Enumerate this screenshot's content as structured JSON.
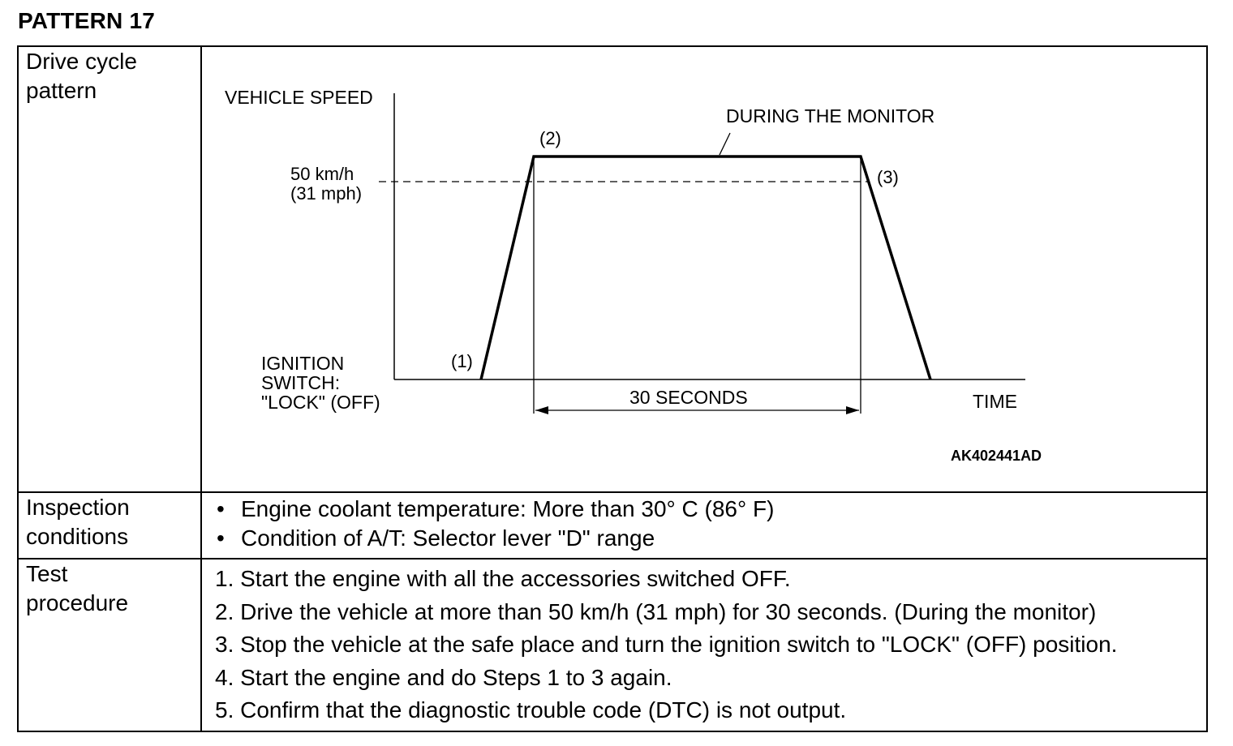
{
  "title": "PATTERN 17",
  "rows": {
    "drive_cycle": {
      "label_line1": "Drive cycle",
      "label_line2": "pattern"
    },
    "inspection": {
      "label_line1": "Inspection",
      "label_line2": "conditions",
      "items": [
        "Engine coolant temperature: More than 30° C (86° F)",
        "Condition of A/T: Selector lever \"D\" range"
      ]
    },
    "test": {
      "label_line1": "Test",
      "label_line2": "procedure",
      "steps": [
        "1. Start the engine with all the accessories switched OFF.",
        "2. Drive the vehicle at more than 50 km/h (31 mph) for 30 seconds. (During the monitor)",
        "3. Stop the vehicle at the safe place and turn the ignition switch to \"LOCK\" (OFF) position.",
        "4. Start the engine and do Steps 1 to 3 again.",
        "5. Confirm that the diagnostic trouble code (DTC) is not output."
      ]
    }
  },
  "bullet_char": "•",
  "diagram": {
    "y_axis_label": "VEHICLE SPEED",
    "x_axis_label": "TIME",
    "speed_label_1": "50 km/h",
    "speed_label_2": "(31 mph)",
    "ignition_line1": "IGNITION",
    "ignition_line2": "SWITCH:",
    "ignition_line3": "\"LOCK\" (OFF)",
    "point_1": "(1)",
    "point_2": "(2)",
    "point_3": "(3)",
    "monitor_label": "DURING THE MONITOR",
    "duration_label": "30 SECONDS",
    "figure_code": "AK402441AD"
  }
}
